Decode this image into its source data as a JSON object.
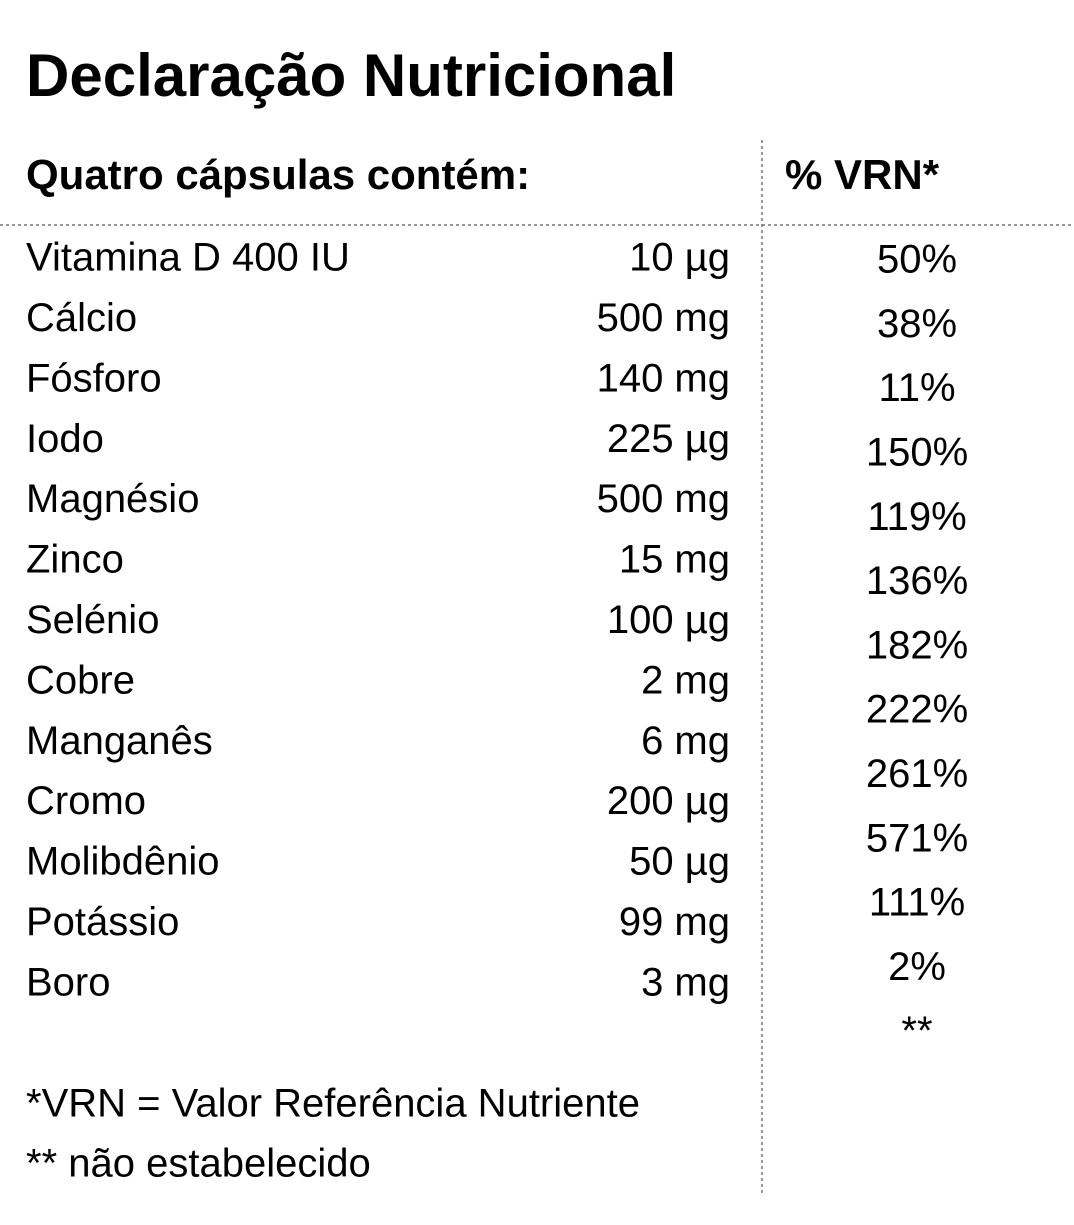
{
  "title": "Declaração Nutricional",
  "header": {
    "left": "Quatro cápsulas contém:",
    "right": "% VRN*"
  },
  "rows": [
    {
      "name": "Vitamina D 400 IU",
      "amount": "10 µg"
    },
    {
      "name": "Cálcio",
      "amount": "500 mg"
    },
    {
      "name": "Fósforo",
      "amount": "140 mg"
    },
    {
      "name": "Iodo",
      "amount": "225 µg"
    },
    {
      "name": "Magnésio",
      "amount": "500 mg"
    },
    {
      "name": "Zinco",
      "amount": "15 mg"
    },
    {
      "name": "Selénio",
      "amount": "100 µg"
    },
    {
      "name": "Cobre",
      "amount": "2 mg"
    },
    {
      "name": "Manganês",
      "amount": "6 mg"
    },
    {
      "name": "Cromo",
      "amount": "200 µg"
    },
    {
      "name": "Molibdênio",
      "amount": "50 µg"
    },
    {
      "name": "Potássio",
      "amount": "99 mg"
    },
    {
      "name": "Boro",
      "amount": "3 mg"
    }
  ],
  "vrn": [
    "50%",
    "38%",
    "11%",
    "150%",
    "119%",
    "136%",
    "182%",
    "222%",
    "261%",
    "571%",
    "111%",
    "2%",
    "**"
  ],
  "footnotes": [
    "*VRN = Valor Referência Nutriente",
    "** não estabelecido"
  ]
}
